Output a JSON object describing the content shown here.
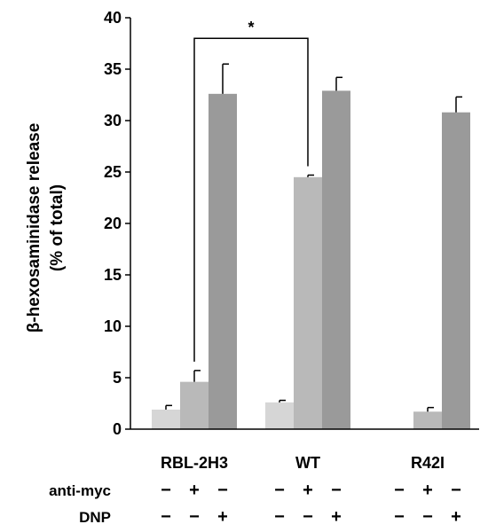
{
  "chart_data": {
    "type": "bar",
    "title": "",
    "ylabel_lines": [
      "β-hexosaminidase release",
      "(% of total)"
    ],
    "xlabel": "",
    "ylim": [
      0,
      40
    ],
    "yticks": [
      0,
      5,
      10,
      15,
      20,
      25,
      30,
      35,
      40
    ],
    "categories": [
      "RBL-2H3",
      "WT",
      "R42I"
    ],
    "series": [
      {
        "values": [
          1.9,
          2.6,
          0
        ],
        "errors": [
          0.4,
          0.2,
          0
        ],
        "color": "#d6d6d6"
      },
      {
        "values": [
          4.6,
          24.5,
          1.7
        ],
        "errors": [
          1.1,
          0.2,
          0.4
        ],
        "color": "#b9b9b9"
      },
      {
        "values": [
          32.6,
          32.9,
          30.8
        ],
        "errors": [
          2.9,
          1.3,
          1.5
        ],
        "color": "#9a9a9a"
      }
    ],
    "conditions": [
      {
        "name": "anti-myc",
        "signs": [
          "−",
          "+",
          "−"
        ]
      },
      {
        "name": "DNP",
        "signs": [
          "−",
          "−",
          "+"
        ]
      }
    ],
    "significance": {
      "from": [
        0,
        1
      ],
      "to": [
        1,
        1
      ],
      "label": "*"
    },
    "grid": false,
    "legend": "none"
  }
}
